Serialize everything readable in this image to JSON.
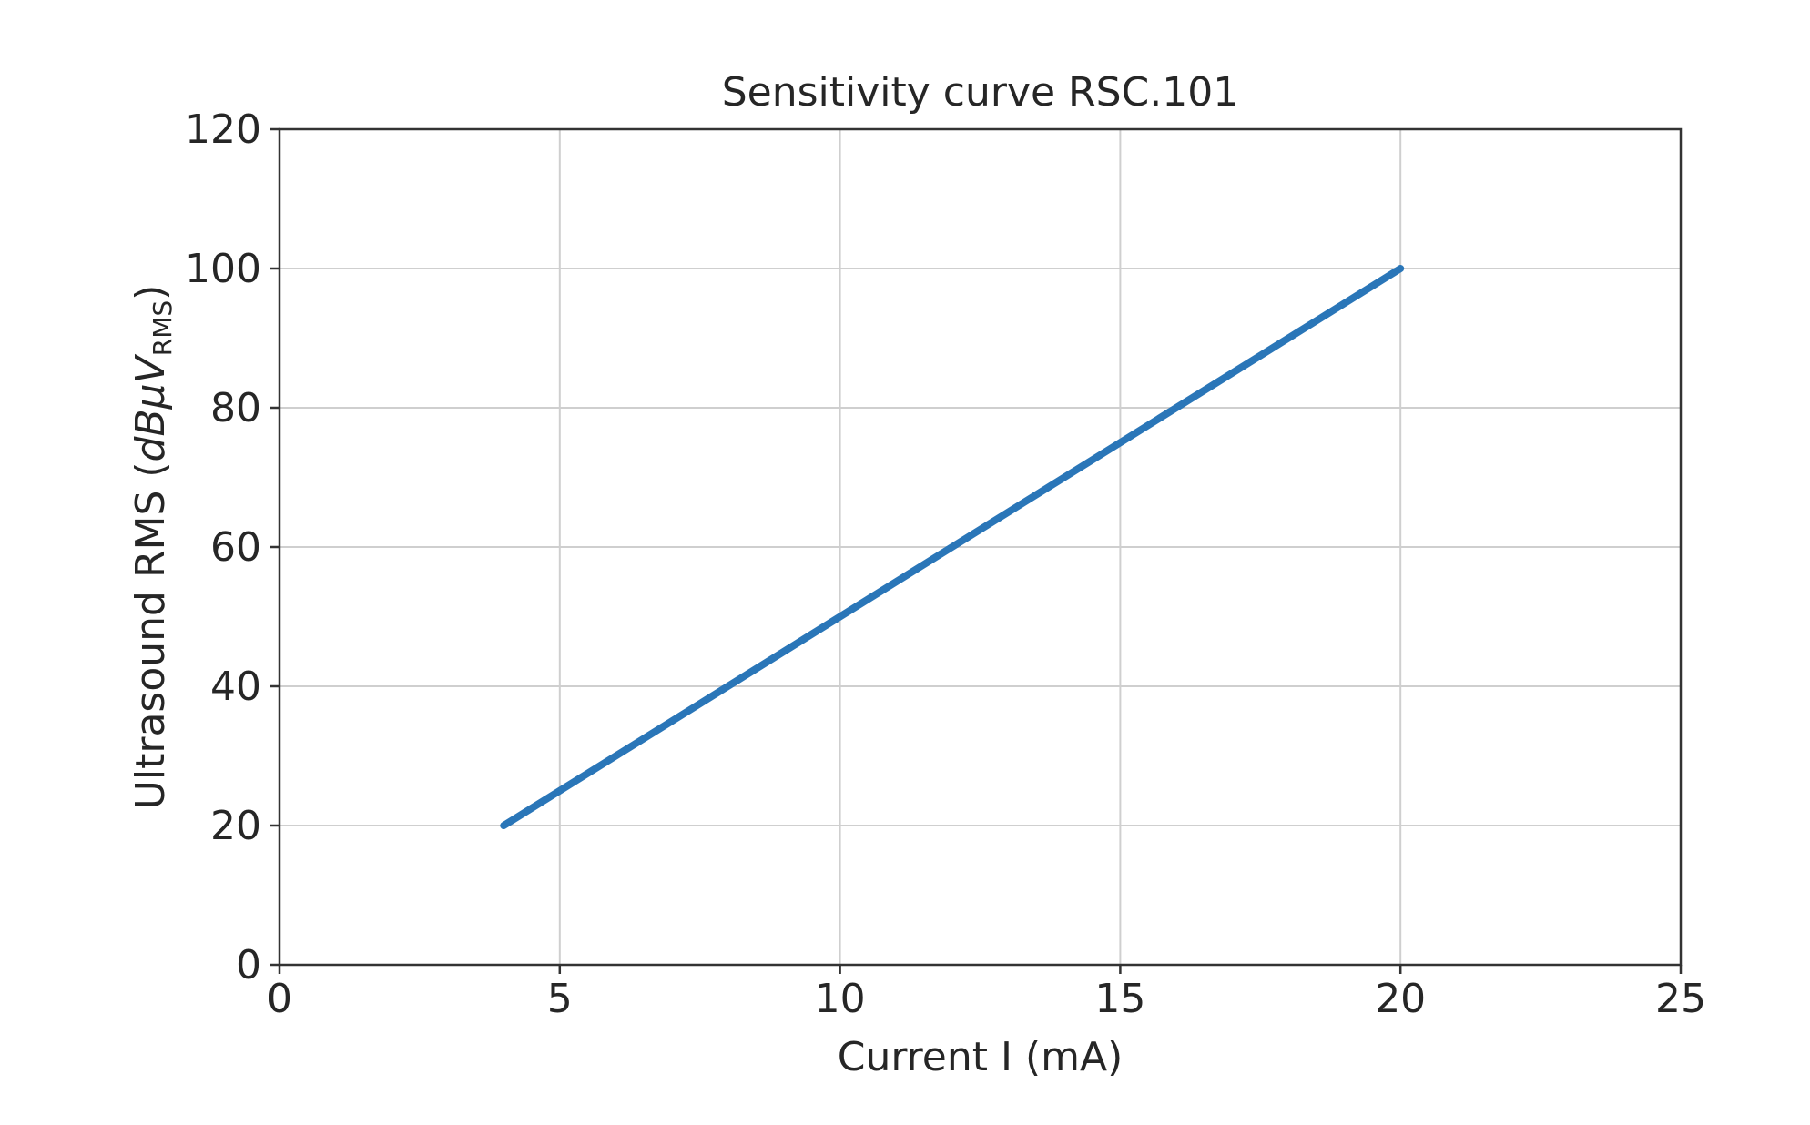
{
  "chart_data": {
    "type": "line",
    "title": "Sensitivity curve RSC.101",
    "xlabel": "Current I (mA)",
    "ylabel": {
      "main": "Ultrasound RMS (",
      "italic": "dBμV",
      "subscript": "RMS",
      "close": ")"
    },
    "xlim": [
      0,
      25
    ],
    "ylim": [
      0,
      120
    ],
    "xticks": [
      0,
      5,
      10,
      15,
      20,
      25
    ],
    "yticks": [
      0,
      20,
      40,
      60,
      80,
      100,
      120
    ],
    "grid": true,
    "series": [
      {
        "color": "#2a76b8",
        "x": [
          4,
          20
        ],
        "y": [
          20,
          100
        ]
      }
    ]
  }
}
